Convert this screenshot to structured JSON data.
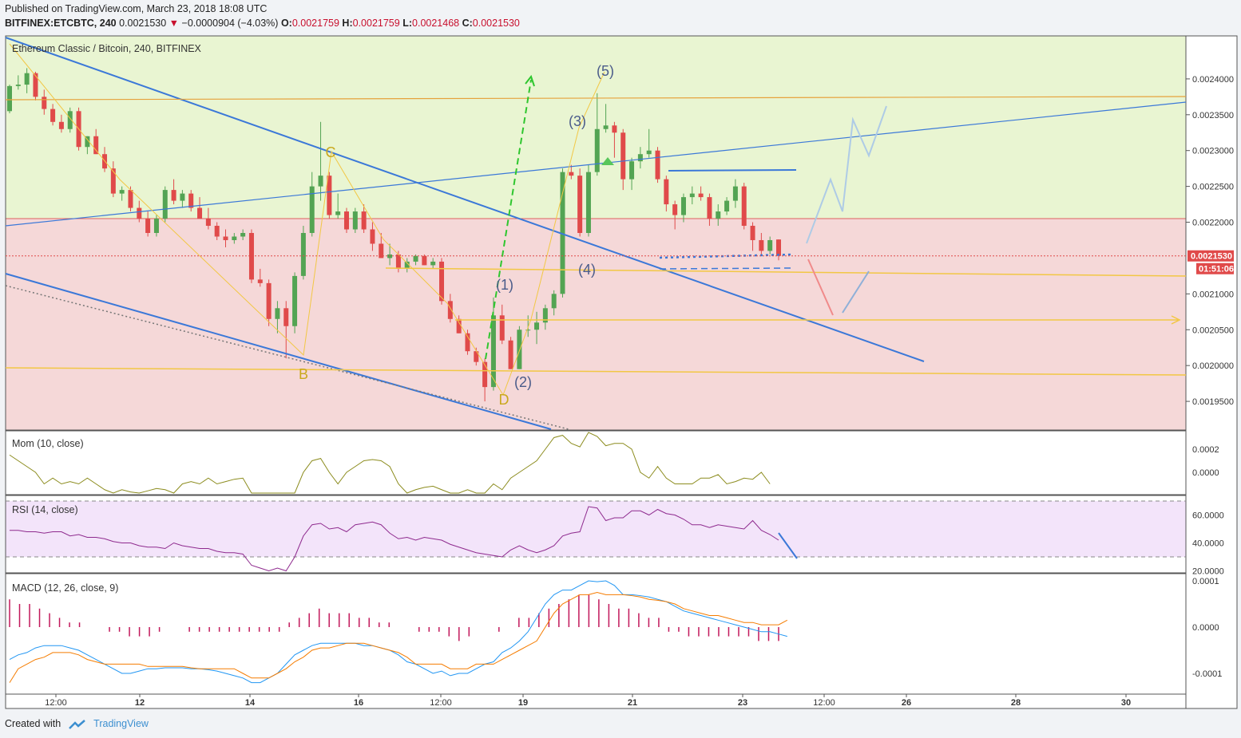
{
  "header": {
    "published": "Published on TradingView.com, March 23, 2018 18:08 UTC",
    "symbol": "BITFINEX:ETCBTC, 240",
    "last": "0.0021530",
    "change": "−0.0000904 (−4.03%)",
    "o_label": "O:",
    "o_val": "0.0021759",
    "h_label": "H:",
    "h_val": "0.0021759",
    "l_label": "L:",
    "l_val": "0.0021468",
    "c_label": "C:",
    "c_val": "0.0021530"
  },
  "footer": {
    "created": "Created with",
    "brand": "TradingView"
  },
  "colors": {
    "up": "#53a453",
    "down": "#e04a4a",
    "green_zone": "#e9f5d2",
    "red_zone": "#f5d8d8",
    "trend": "#3b78d8",
    "fib": "#f2c744",
    "mom": "#8c8c1e",
    "rsi": "#8e2a8e",
    "macd": "#2196f3",
    "signal": "#f57c00"
  },
  "chart_data": [
    {
      "type": "candlestick",
      "title": "Ethereum Classic / Bitcoin, 240, BITFINEX",
      "x_ticks": [
        "12:00",
        "12",
        "14",
        "16",
        "12:00",
        "19",
        "21",
        "23",
        "12:00",
        "26",
        "28",
        "30"
      ],
      "y_ticks": [
        "0.0024000",
        "0.0023500",
        "0.0023000",
        "0.0022500",
        "0.0022000",
        "0.0021000",
        "0.0020500",
        "0.0020000",
        "0.0019500"
      ],
      "ylim": [
        0.00191,
        0.00246
      ],
      "last_price_label": "0.0021530",
      "countdown_label": "01:51:06",
      "annotations": [
        "C",
        "B",
        "D",
        "(1)",
        "(2)",
        "(3)",
        "(4)",
        "(5)"
      ],
      "candles": [
        [
          0.002355,
          0.002392,
          0.002352,
          0.00239
        ],
        [
          0.00239,
          0.002405,
          0.002385,
          0.002392
        ],
        [
          0.002392,
          0.002415,
          0.00238,
          0.002408
        ],
        [
          0.002408,
          0.00241,
          0.00237,
          0.002375
        ],
        [
          0.002375,
          0.002385,
          0.00235,
          0.002358
        ],
        [
          0.002358,
          0.002365,
          0.002335,
          0.00234
        ],
        [
          0.00234,
          0.00235,
          0.002325,
          0.00233
        ],
        [
          0.00233,
          0.00236,
          0.002325,
          0.002355
        ],
        [
          0.002355,
          0.00236,
          0.0023,
          0.002305
        ],
        [
          0.002305,
          0.00232,
          0.002295,
          0.00232
        ],
        [
          0.00232,
          0.00233,
          0.002295,
          0.002295
        ],
        [
          0.002295,
          0.002305,
          0.00227,
          0.002275
        ],
        [
          0.002275,
          0.002285,
          0.002235,
          0.00224
        ],
        [
          0.00224,
          0.00225,
          0.00223,
          0.002245
        ],
        [
          0.002245,
          0.00225,
          0.002215,
          0.00222
        ],
        [
          0.00222,
          0.00223,
          0.0022,
          0.002205
        ],
        [
          0.002205,
          0.002215,
          0.00218,
          0.002185
        ],
        [
          0.002185,
          0.00221,
          0.00218,
          0.002205
        ],
        [
          0.002205,
          0.00225,
          0.0022,
          0.002245
        ],
        [
          0.002245,
          0.00226,
          0.002225,
          0.00223
        ],
        [
          0.00223,
          0.002245,
          0.00222,
          0.00224
        ],
        [
          0.00224,
          0.002245,
          0.002215,
          0.00222
        ],
        [
          0.00222,
          0.002235,
          0.002205,
          0.002205
        ],
        [
          0.002205,
          0.00222,
          0.00219,
          0.002195
        ],
        [
          0.002195,
          0.0022,
          0.002175,
          0.00218
        ],
        [
          0.00218,
          0.00219,
          0.002165,
          0.002175
        ],
        [
          0.002175,
          0.002185,
          0.00217,
          0.00218
        ],
        [
          0.00218,
          0.00219,
          0.002175,
          0.002185
        ],
        [
          0.002185,
          0.00219,
          0.002115,
          0.00212
        ],
        [
          0.00212,
          0.002135,
          0.00211,
          0.002115
        ],
        [
          0.002115,
          0.00212,
          0.002055,
          0.002065
        ],
        [
          0.002065,
          0.00209,
          0.002045,
          0.00208
        ],
        [
          0.00208,
          0.00209,
          0.00201,
          0.002055
        ],
        [
          0.002055,
          0.00213,
          0.002045,
          0.002125
        ],
        [
          0.002125,
          0.002195,
          0.00212,
          0.002185
        ],
        [
          0.002185,
          0.00227,
          0.00218,
          0.00225
        ],
        [
          0.00225,
          0.00234,
          0.00223,
          0.002265
        ],
        [
          0.002265,
          0.00227,
          0.002205,
          0.00221
        ],
        [
          0.00221,
          0.00224,
          0.002205,
          0.002215
        ],
        [
          0.002215,
          0.00222,
          0.002185,
          0.00219
        ],
        [
          0.00219,
          0.00222,
          0.002185,
          0.002215
        ],
        [
          0.002215,
          0.002225,
          0.002185,
          0.00219
        ],
        [
          0.00219,
          0.0022,
          0.00216,
          0.00217
        ],
        [
          0.00217,
          0.002185,
          0.00215,
          0.00215
        ],
        [
          0.00215,
          0.00217,
          0.00214,
          0.002155
        ],
        [
          0.002155,
          0.00216,
          0.00213,
          0.002135
        ],
        [
          0.002135,
          0.00215,
          0.00213,
          0.002145
        ],
        [
          0.002145,
          0.002155,
          0.00214,
          0.002153
        ],
        [
          0.002153,
          0.002155,
          0.00214,
          0.00214
        ],
        [
          0.00214,
          0.00215,
          0.002135,
          0.002145
        ],
        [
          0.002145,
          0.00215,
          0.002085,
          0.00209
        ],
        [
          0.00209,
          0.0021,
          0.00206,
          0.002065
        ],
        [
          0.002065,
          0.00207,
          0.002045,
          0.002045
        ],
        [
          0.002045,
          0.00205,
          0.002015,
          0.00202
        ],
        [
          0.00202,
          0.002025,
          0.002,
          0.002005
        ],
        [
          0.002005,
          0.00201,
          0.00195,
          0.00197
        ],
        [
          0.00197,
          0.002095,
          0.001965,
          0.00207
        ],
        [
          0.00207,
          0.002085,
          0.00203,
          0.002035
        ],
        [
          0.002035,
          0.00204,
          0.001995,
          0.001995
        ],
        [
          0.001995,
          0.002055,
          0.001995,
          0.00205
        ],
        [
          0.00205,
          0.00207,
          0.00204,
          0.00205
        ],
        [
          0.00205,
          0.002075,
          0.00203,
          0.00206
        ],
        [
          0.00206,
          0.002085,
          0.00205,
          0.00208
        ],
        [
          0.00208,
          0.002105,
          0.00207,
          0.0021
        ],
        [
          0.0021,
          0.002275,
          0.002095,
          0.00227
        ],
        [
          0.00227,
          0.00228,
          0.00226,
          0.002265
        ],
        [
          0.002265,
          0.002275,
          0.00218,
          0.002185
        ],
        [
          0.002185,
          0.00228,
          0.00218,
          0.00227
        ],
        [
          0.00227,
          0.00238,
          0.002265,
          0.00233
        ],
        [
          0.00233,
          0.002365,
          0.002325,
          0.002335
        ],
        [
          0.002335,
          0.00234,
          0.00229,
          0.002325
        ],
        [
          0.002325,
          0.00233,
          0.002245,
          0.00226
        ],
        [
          0.00226,
          0.00229,
          0.002245,
          0.002285
        ],
        [
          0.002285,
          0.002305,
          0.002275,
          0.002295
        ],
        [
          0.002295,
          0.00233,
          0.00229,
          0.0023
        ],
        [
          0.0023,
          0.002305,
          0.002255,
          0.00226
        ],
        [
          0.00226,
          0.002265,
          0.002215,
          0.002225
        ],
        [
          0.002225,
          0.00223,
          0.00219,
          0.00221
        ],
        [
          0.00221,
          0.00224,
          0.0022,
          0.002235
        ],
        [
          0.002235,
          0.00225,
          0.002225,
          0.00224
        ],
        [
          0.00224,
          0.00225,
          0.00223,
          0.002235
        ],
        [
          0.002235,
          0.00224,
          0.002195,
          0.002205
        ],
        [
          0.002205,
          0.002225,
          0.002195,
          0.002215
        ],
        [
          0.002215,
          0.002235,
          0.00221,
          0.00223
        ],
        [
          0.00223,
          0.00226,
          0.00222,
          0.00225
        ],
        [
          0.00225,
          0.002255,
          0.00219,
          0.002195
        ],
        [
          0.002195,
          0.0022,
          0.00216,
          0.002175
        ],
        [
          0.002175,
          0.002185,
          0.002155,
          0.00216
        ],
        [
          0.00216,
          0.00218,
          0.002155,
          0.002175
        ],
        [
          0.0021759,
          0.0021759,
          0.0021468,
          0.002153
        ]
      ]
    },
    {
      "type": "line",
      "title": "Mom (10, close)",
      "y_ticks": [
        "0.0002",
        "0.0000"
      ],
      "values": [
        0.00015,
        0.0001,
        5e-05,
        0.0,
        -0.0001,
        -5e-05,
        -0.0001,
        -8e-05,
        -0.0001,
        -5e-05,
        -0.0001,
        -0.00015,
        -0.0002,
        -0.00015,
        -0.00017,
        -0.00018,
        -0.00016,
        -0.00014,
        -0.00015,
        -0.0002,
        -0.0001,
        -8e-05,
        -0.0001,
        -5e-05,
        -0.0001,
        -8e-05,
        -6e-05,
        -5e-05,
        -0.0002,
        -0.0002,
        -0.0002,
        -0.00025,
        -0.0002,
        -0.00018,
        0.0,
        0.0001,
        0.00012,
        0.0,
        -0.0001,
        0.0,
        5e-05,
        0.0001,
        0.00011,
        0.0001,
        5e-05,
        -0.0001,
        -0.0002,
        -0.00015,
        -0.00013,
        -0.00012,
        -0.00015,
        -0.0002,
        -0.00018,
        -0.00015,
        -0.00018,
        -0.00022,
        -0.0001,
        -0.00015,
        -5e-05,
        0.0,
        5e-05,
        0.0001,
        0.0002,
        0.0003,
        0.00032,
        0.00025,
        0.00022,
        0.00035,
        0.00031,
        0.00023,
        0.00025,
        0.00025,
        0.0002,
        0.0,
        -5e-05,
        5e-05,
        -5e-05,
        -0.0001,
        -0.0001,
        -0.0001,
        -5e-05,
        -5e-05,
        -2e-05,
        -0.0001,
        -8e-05,
        -5e-05,
        -6e-05,
        0.0,
        -0.0001
      ]
    },
    {
      "type": "line",
      "title": "RSI (14, close)",
      "y_ticks": [
        "60.0000",
        "40.0000",
        "20.0000"
      ],
      "values": [
        49,
        49,
        48,
        48,
        47,
        48,
        48,
        45,
        46,
        44,
        44,
        43,
        41,
        40,
        40,
        38,
        37,
        37,
        36,
        40,
        38,
        37,
        36,
        36,
        34,
        33,
        33,
        32,
        24,
        22,
        20,
        22,
        20,
        30,
        45,
        53,
        54,
        50,
        51,
        48,
        53,
        54,
        55,
        53,
        47,
        43,
        44,
        42,
        44,
        43,
        42,
        39,
        37,
        35,
        33,
        32,
        31,
        30,
        35,
        38,
        35,
        33,
        35,
        38,
        45,
        47,
        48,
        66,
        65,
        56,
        58,
        58,
        63,
        63,
        60,
        64,
        61,
        60,
        57,
        53,
        53,
        51,
        53,
        52,
        51,
        50,
        56,
        49,
        46,
        42,
        30
      ],
      "bands": [
        70,
        30
      ]
    },
    {
      "type": "line",
      "title": "MACD (12, 26, close, 9)",
      "y_ticks": [
        "0.0001",
        "0.0000",
        "-0.0001"
      ],
      "series": [
        {
          "values": [
            -7e-05,
            -6e-05,
            -5.5e-05,
            -4.5e-05,
            -4e-05,
            -4e-05,
            -4e-05,
            -4.5e-05,
            -5e-05,
            -6e-05,
            -7e-05,
            -8e-05,
            -9e-05,
            -0.0001,
            -0.0001,
            -9.5e-05,
            -9e-05,
            -9e-05,
            -8.8e-05,
            -8.8e-05,
            -8.8e-05,
            -9e-05,
            -9e-05,
            -9.2e-05,
            -9.5e-05,
            -0.0001,
            -0.000105,
            -0.00011,
            -0.00012,
            -0.00012,
            -0.00011,
            -0.0001,
            -8e-05,
            -6e-05,
            -5e-05,
            -4e-05,
            -3.5e-05,
            -3.5e-05,
            -3.5e-05,
            -3.5e-05,
            -3.5e-05,
            -4e-05,
            -4e-05,
            -4.5e-05,
            -5e-05,
            -6e-05,
            -7.5e-05,
            -8e-05,
            -9e-05,
            -0.0001,
            -9.5e-05,
            -0.000105,
            -0.0001,
            -0.0001,
            -9e-05,
            -8e-05,
            -7.5e-05,
            -5.5e-05,
            -4.5e-05,
            -3e-05,
            -1e-05,
            2e-05,
            5e-05,
            7e-05,
            8e-05,
            8e-05,
            9e-05,
            0.0001,
            9.8e-05,
            0.0001,
            9e-05,
            7e-05,
            7e-05,
            6.8e-05,
            6.5e-05,
            6e-05,
            5.5e-05,
            4.5e-05,
            3.5e-05,
            3e-05,
            2.5e-05,
            2e-05,
            1.5e-05,
            1e-05,
            5e-06,
            0.0,
            -5e-06,
            -1e-05,
            -1e-05,
            -1.5e-05,
            -2e-05
          ]
        },
        {
          "values": [
            -0.00012,
            -9e-05,
            -8e-05,
            -7e-05,
            -6.5e-05,
            -5.5e-05,
            -5.5e-05,
            -5.5e-05,
            -6e-05,
            -7e-05,
            -7.5e-05,
            -8e-05,
            -8e-05,
            -8e-05,
            -8e-05,
            -8e-05,
            -8.5e-05,
            -8.5e-05,
            -8.5e-05,
            -8.5e-05,
            -8.5e-05,
            -8.8e-05,
            -9e-05,
            -9e-05,
            -9e-05,
            -9e-05,
            -9e-05,
            -0.0001,
            -0.00011,
            -0.00011,
            -0.00011,
            -0.0001,
            -9e-05,
            -7.5e-05,
            -6.5e-05,
            -5e-05,
            -4.5e-05,
            -4.5e-05,
            -4e-05,
            -3.5e-05,
            -3.5e-05,
            -3.5e-05,
            -4e-05,
            -4.5e-05,
            -5e-05,
            -5.5e-05,
            -6.5e-05,
            -8e-05,
            -8e-05,
            -8e-05,
            -8e-05,
            -9e-05,
            -9e-05,
            -9e-05,
            -8e-05,
            -8e-05,
            -8e-05,
            -7e-05,
            -6e-05,
            -5e-05,
            -4e-05,
            -3e-05,
            0.0,
            3e-05,
            5e-05,
            6e-05,
            7e-05,
            7e-05,
            7.5e-05,
            7e-05,
            7e-05,
            7e-05,
            6.8e-05,
            6.5e-05,
            6e-05,
            5.8e-05,
            5.5e-05,
            5e-05,
            4e-05,
            3.5e-05,
            3e-05,
            2.5e-05,
            2.5e-05,
            2e-05,
            1.5e-05,
            1e-05,
            1e-05,
            5e-06,
            5e-06,
            5e-06,
            1.5e-05
          ]
        }
      ],
      "histogram": [
        6e-05,
        5e-05,
        5e-05,
        4e-05,
        3e-05,
        2e-05,
        1e-05,
        1e-05,
        0.0,
        0.0,
        -1e-05,
        -1e-05,
        -2e-05,
        -2e-05,
        -2e-05,
        -1e-05,
        0.0,
        0.0,
        -1e-05,
        -1e-05,
        -1e-05,
        -1e-05,
        -1e-05,
        -1e-05,
        -1e-05,
        -1e-05,
        -1e-05,
        -1e-05,
        1e-05,
        2e-05,
        3e-05,
        4e-05,
        3e-05,
        3e-05,
        3e-05,
        2e-05,
        2e-05,
        1e-05,
        1e-05,
        0.0,
        0.0,
        -1e-05,
        -1e-05,
        -1e-05,
        -2e-05,
        -3e-05,
        -2e-05,
        0.0,
        0.0,
        -1e-05,
        0.0,
        2e-05,
        2e-05,
        3e-05,
        4e-05,
        5e-05,
        6e-05,
        7e-05,
        7e-05,
        6e-05,
        5e-05,
        4e-05,
        4e-05,
        3e-05,
        2e-05,
        2e-05,
        -1e-05,
        -1e-05,
        -2e-05,
        -2e-05,
        -2e-05,
        -2e-05,
        -2e-05,
        -2e-05,
        -2e-05,
        -3e-05,
        -3e-05,
        -3e-05
      ]
    }
  ]
}
